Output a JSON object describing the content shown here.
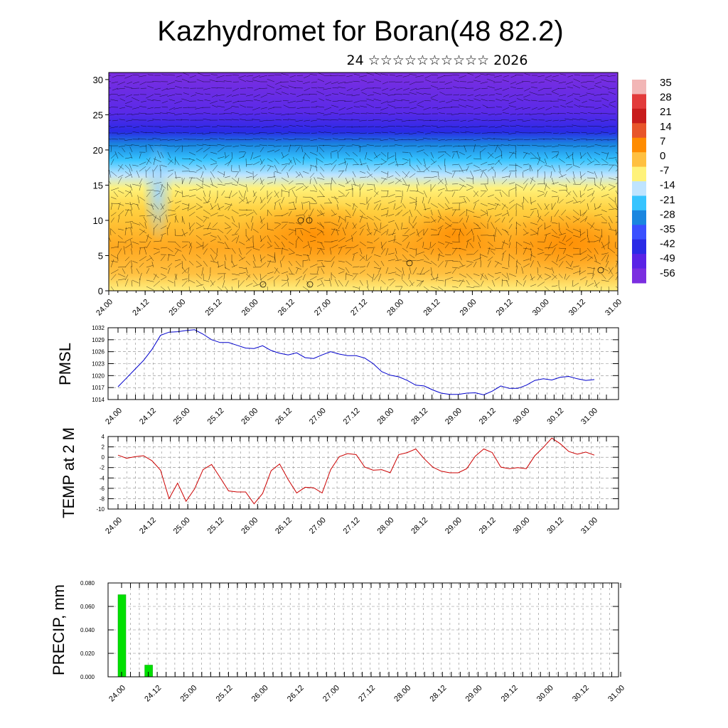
{
  "title": "Kazhydromet for Boran(48 82.2)",
  "subtitle": "24 ☆☆☆☆☆☆☆☆☆☆ 2026",
  "chart_data": [
    {
      "type": "heatmap",
      "name": "vertical cross-section temperature with wind vectors",
      "x_labels": [
        "24.00",
        "24.12",
        "25.00",
        "25.12",
        "26.00",
        "26.12",
        "27.00",
        "27.12",
        "28.00",
        "28.12",
        "29.00",
        "29.12",
        "30.00",
        "30.12",
        "31.00"
      ],
      "y_ticks": [
        0,
        5,
        10,
        15,
        20,
        25,
        30
      ],
      "ylim": [
        0,
        31
      ],
      "colorbar": {
        "labels": [
          "35",
          "28",
          "21",
          "14",
          "7",
          "0",
          "-7",
          "-14",
          "-21",
          "-28",
          "-35",
          "-42",
          "-49",
          "-56"
        ],
        "colors": [
          "#f2b6b6",
          "#e23b3b",
          "#c81c1c",
          "#e8552a",
          "#ff8c00",
          "#ffc040",
          "#fff27a",
          "#bfe4ff",
          "#36c4ff",
          "#1a86e0",
          "#3a50ff",
          "#2a2ae6",
          "#5a22e6",
          "#7b2ee0"
        ]
      }
    },
    {
      "type": "line",
      "name": "PMSL",
      "ylabel": "PMSL",
      "ylim": [
        1014,
        1032
      ],
      "y_ticks": [
        "1014",
        "1017",
        "1020",
        "1023",
        "1026",
        "1029",
        "1032"
      ],
      "x_labels": [
        "24.00",
        "24.12",
        "25.00",
        "25.12",
        "26.00",
        "26.12",
        "27.00",
        "27.12",
        "28.00",
        "28.12",
        "29.00",
        "29.12",
        "30.00",
        "30.12",
        "31.00"
      ],
      "color": "#0000cc",
      "values": [
        1017.2,
        1019.4,
        1021.6,
        1023.8,
        1026.6,
        1030.1,
        1030.9,
        1031.0,
        1031.3,
        1031.5,
        1030.4,
        1029.0,
        1028.3,
        1028.3,
        1027.6,
        1026.9,
        1026.8,
        1027.5,
        1026.3,
        1025.6,
        1025.2,
        1025.7,
        1024.5,
        1024.3,
        1025.2,
        1026.0,
        1025.4,
        1025.0,
        1025.0,
        1024.4,
        1023.0,
        1021.0,
        1020.1,
        1019.7,
        1018.8,
        1017.6,
        1017.4,
        1016.4,
        1015.6,
        1015.3,
        1015.3,
        1015.6,
        1015.7,
        1015.2,
        1016.1,
        1017.4,
        1016.8,
        1016.8,
        1017.6,
        1018.8,
        1019.2,
        1018.9,
        1019.6,
        1019.8,
        1019.2,
        1018.8,
        1019.0
      ]
    },
    {
      "type": "line",
      "name": "TEMP at 2 M",
      "ylabel": "TEMP at 2 M",
      "ylim": [
        -10,
        4
      ],
      "y_ticks": [
        "-10",
        "-8",
        "-6",
        "-4",
        "-2",
        "0",
        "2",
        "4"
      ],
      "x_labels": [
        "24.00",
        "24.12",
        "25.00",
        "25.12",
        "26.00",
        "26.12",
        "27.00",
        "27.12",
        "28.00",
        "28.12",
        "29.00",
        "29.12",
        "30.00",
        "30.12",
        "31.00"
      ],
      "color": "#cc0000",
      "values": [
        0.4,
        -0.2,
        0.1,
        0.3,
        -0.7,
        -2.5,
        -8.0,
        -5.0,
        -8.5,
        -6.1,
        -2.4,
        -1.4,
        -3.9,
        -6.5,
        -6.7,
        -6.7,
        -9.0,
        -7.0,
        -2.6,
        -1.3,
        -4.3,
        -6.9,
        -5.8,
        -5.9,
        -6.9,
        -2.4,
        0.1,
        0.7,
        0.5,
        -1.9,
        -2.5,
        -2.4,
        -3.0,
        0.5,
        0.9,
        1.6,
        -0.3,
        -1.9,
        -2.7,
        -3.0,
        -3.0,
        -2.2,
        0.2,
        1.6,
        0.9,
        -1.9,
        -2.2,
        -2.0,
        -2.2,
        0.3,
        1.9,
        3.7,
        2.6,
        1.1,
        0.6,
        1.0,
        0.4
      ]
    },
    {
      "type": "bar",
      "name": "PRECIP, mm",
      "ylabel": "PRECIP, mm",
      "ylim": [
        0,
        0.08
      ],
      "y_ticks": [
        "0.000",
        "0.020",
        "0.040",
        "0.060",
        "0.080"
      ],
      "x_labels": [
        "24.00",
        "24.12",
        "25.00",
        "25.12",
        "26.00",
        "26.12",
        "27.00",
        "27.12",
        "28.00",
        "28.12",
        "29.00",
        "29.12",
        "30.00",
        "30.12",
        "31.00"
      ],
      "color": "#00e000",
      "bars": [
        {
          "x_index": 0,
          "value": 0.07
        },
        {
          "x_index": 3,
          "value": 0.01
        }
      ]
    }
  ]
}
